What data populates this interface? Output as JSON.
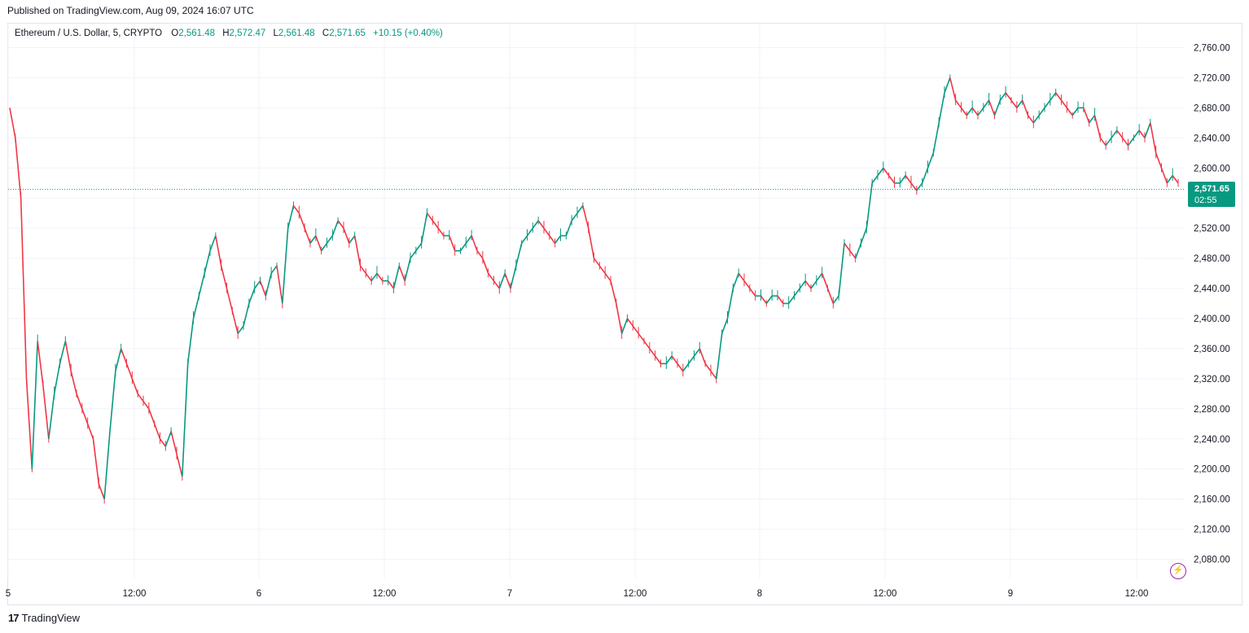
{
  "header": {
    "published": "Published on TradingView.com, Aug 09, 2024 16:07 UTC"
  },
  "legend": {
    "symbol": "Ethereum / U.S. Dollar, 5, CRYPTO",
    "o_label": "O",
    "o_value": "2,561.48",
    "h_label": "H",
    "h_value": "2,572.47",
    "l_label": "L",
    "l_value": "2,561.48",
    "c_label": "C",
    "c_value": "2,571.65",
    "change": "+10.15 (+0.40%)"
  },
  "price_tag": {
    "price": "2,571.65",
    "countdown": "02:55"
  },
  "footer": {
    "logo_mark": "17",
    "brand": "TradingView"
  },
  "colors": {
    "up": "#089981",
    "down": "#f23645",
    "grid": "#f0f3fa",
    "last_price_line": "#089981"
  },
  "icons": {
    "flash": "lightning-icon"
  },
  "chart_data": {
    "type": "line",
    "title": "Ethereum / U.S. Dollar, 5, CRYPTO",
    "y_ticks": [
      "2,760.00",
      "2,720.00",
      "2,680.00",
      "2,640.00",
      "2,600.00",
      "2,560.00",
      "2,520.00",
      "2,480.00",
      "2,440.00",
      "2,400.00",
      "2,360.00",
      "2,320.00",
      "2,280.00",
      "2,240.00",
      "2,200.00",
      "2,160.00",
      "2,120.00",
      "2,080.00"
    ],
    "x_ticks": [
      "5",
      "12:00",
      "6",
      "12:00",
      "7",
      "12:00",
      "8",
      "12:00",
      "9",
      "12:00"
    ],
    "ylim": [
      2060,
      2780
    ],
    "last_price": 2571.65,
    "series": [
      {
        "x": [
          0,
          1,
          2,
          3,
          4,
          5,
          6,
          7,
          8,
          9,
          10,
          11,
          12,
          13,
          14,
          15,
          16,
          17,
          18,
          19,
          20,
          21,
          22,
          23,
          24,
          25,
          26,
          27,
          28,
          29,
          30,
          31,
          32,
          33,
          34,
          35,
          36,
          37,
          38,
          39,
          40,
          41,
          42,
          43,
          44,
          45,
          46,
          47,
          48,
          49,
          50,
          51,
          52,
          53,
          54,
          55,
          56,
          57,
          58,
          59,
          60,
          61,
          62,
          63,
          64,
          65,
          66,
          67,
          68,
          69,
          70,
          71,
          72,
          73,
          74,
          75,
          76,
          77,
          78,
          79,
          80,
          81,
          82,
          83,
          84,
          85,
          86,
          87,
          88,
          89,
          90,
          91,
          92,
          93,
          94,
          95,
          96,
          97,
          98,
          99,
          100,
          101,
          102,
          103,
          104,
          105,
          106,
          107,
          108,
          109,
          110,
          111,
          112,
          113,
          114,
          115,
          116,
          117,
          118,
          119,
          120,
          121,
          122,
          123,
          124,
          125,
          126,
          127,
          128,
          129,
          130,
          131,
          132,
          133,
          134,
          135,
          136,
          137,
          138,
          139,
          140,
          141,
          142,
          143,
          144,
          145,
          146,
          147,
          148,
          149,
          150,
          151,
          152,
          153,
          154,
          155,
          156,
          157,
          158,
          159,
          160,
          161,
          162,
          163,
          164,
          165,
          166,
          167,
          168,
          169,
          170,
          171,
          172,
          173,
          174,
          175,
          176,
          177,
          178,
          179,
          180,
          181,
          182,
          183,
          184,
          185,
          186,
          187,
          188,
          189,
          190,
          191,
          192,
          193,
          194,
          195,
          196,
          197,
          198,
          199,
          200,
          201,
          202,
          203,
          204,
          205,
          206,
          207,
          208,
          209,
          210,
          211,
          212,
          213,
          214,
          215,
          216,
          217,
          218,
          219,
          220,
          221,
          222,
          223,
          224,
          225
        ],
        "y": [
          2680,
          2640,
          2560,
          2320,
          2200,
          2370,
          2310,
          2240,
          2300,
          2340,
          2370,
          2330,
          2300,
          2280,
          2260,
          2240,
          2180,
          2160,
          2250,
          2330,
          2360,
          2340,
          2320,
          2300,
          2290,
          2280,
          2260,
          2240,
          2230,
          2250,
          2220,
          2190,
          2340,
          2400,
          2430,
          2460,
          2490,
          2510,
          2470,
          2440,
          2410,
          2380,
          2390,
          2420,
          2440,
          2450,
          2430,
          2460,
          2470,
          2420,
          2520,
          2550,
          2540,
          2520,
          2500,
          2510,
          2490,
          2500,
          2510,
          2530,
          2520,
          2500,
          2510,
          2470,
          2460,
          2450,
          2460,
          2450,
          2450,
          2440,
          2470,
          2450,
          2480,
          2490,
          2500,
          2540,
          2530,
          2520,
          2510,
          2510,
          2490,
          2490,
          2500,
          2510,
          2490,
          2480,
          2460,
          2450,
          2440,
          2460,
          2440,
          2470,
          2500,
          2510,
          2520,
          2530,
          2520,
          2510,
          2500,
          2510,
          2510,
          2530,
          2540,
          2550,
          2520,
          2480,
          2470,
          2460,
          2450,
          2420,
          2380,
          2400,
          2390,
          2380,
          2370,
          2360,
          2350,
          2340,
          2340,
          2350,
          2340,
          2330,
          2340,
          2350,
          2360,
          2340,
          2330,
          2320,
          2380,
          2400,
          2440,
          2460,
          2450,
          2440,
          2430,
          2430,
          2420,
          2430,
          2430,
          2420,
          2420,
          2430,
          2440,
          2450,
          2440,
          2450,
          2460,
          2440,
          2420,
          2430,
          2500,
          2490,
          2480,
          2500,
          2520,
          2580,
          2590,
          2600,
          2590,
          2580,
          2580,
          2590,
          2580,
          2570,
          2580,
          2600,
          2620,
          2660,
          2700,
          2720,
          2690,
          2680,
          2670,
          2680,
          2670,
          2680,
          2690,
          2670,
          2690,
          2700,
          2690,
          2680,
          2690,
          2670,
          2660,
          2670,
          2680,
          2690,
          2700,
          2690,
          2680,
          2670,
          2680,
          2680,
          2660,
          2670,
          2640,
          2630,
          2640,
          2650,
          2640,
          2630,
          2640,
          2650,
          2640,
          2660,
          2620,
          2600,
          2580,
          2590,
          2580,
          2571.65,
          2571.65,
          2571.65,
          2571.65,
          2571.65,
          2571.65,
          2571.65,
          2571.65,
          2571.65,
          2571.65,
          2571.65,
          2571.65,
          2571.65,
          2571.65,
          2571.65
        ]
      }
    ]
  }
}
